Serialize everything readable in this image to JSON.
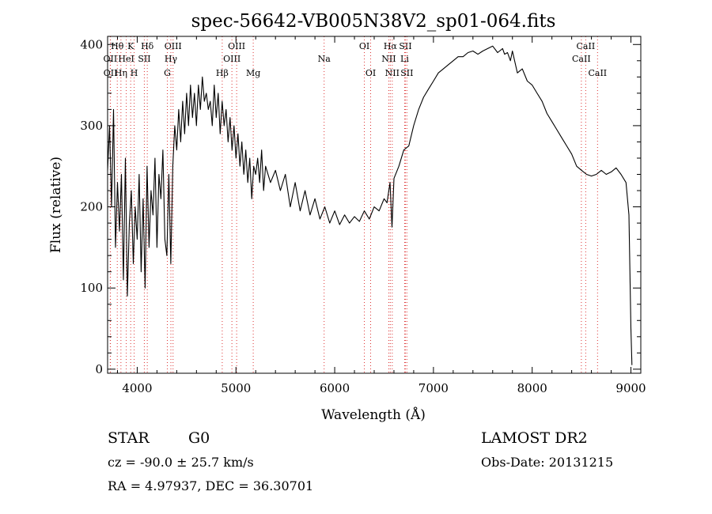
{
  "chart_data": {
    "type": "line",
    "title": "spec-56642-VB005N38V2_sp01-064.fits",
    "xlabel": "Wavelength (Å)",
    "ylabel": "Flux (relative)",
    "xlim": [
      3700,
      9100
    ],
    "ylim": [
      -5,
      410
    ],
    "xticks": [
      4000,
      5000,
      6000,
      7000,
      8000,
      9000
    ],
    "yticks": [
      0,
      100,
      200,
      300,
      400
    ],
    "grid": false,
    "series": [
      {
        "color": "#000000",
        "x": [
          3700,
          3720,
          3740,
          3760,
          3780,
          3800,
          3820,
          3840,
          3860,
          3880,
          3900,
          3920,
          3940,
          3960,
          3980,
          4000,
          4020,
          4040,
          4060,
          4080,
          4100,
          4120,
          4140,
          4160,
          4180,
          4200,
          4220,
          4240,
          4260,
          4280,
          4300,
          4320,
          4340,
          4360,
          4380,
          4400,
          4420,
          4440,
          4460,
          4480,
          4500,
          4520,
          4540,
          4560,
          4580,
          4600,
          4620,
          4640,
          4660,
          4680,
          4700,
          4720,
          4740,
          4760,
          4780,
          4800,
          4820,
          4840,
          4860,
          4880,
          4900,
          4920,
          4940,
          4960,
          4980,
          5000,
          5020,
          5040,
          5060,
          5080,
          5100,
          5120,
          5140,
          5160,
          5180,
          5200,
          5220,
          5240,
          5260,
          5280,
          5300,
          5350,
          5400,
          5450,
          5500,
          5550,
          5600,
          5650,
          5700,
          5750,
          5800,
          5850,
          5900,
          5950,
          6000,
          6050,
          6100,
          6150,
          6200,
          6250,
          6300,
          6350,
          6400,
          6450,
          6500,
          6530,
          6560,
          6580,
          6600,
          6650,
          6700,
          6750,
          6800,
          6850,
          6900,
          6950,
          7000,
          7050,
          7100,
          7150,
          7200,
          7250,
          7300,
          7350,
          7400,
          7450,
          7500,
          7550,
          7600,
          7650,
          7700,
          7720,
          7750,
          7780,
          7800,
          7850,
          7900,
          7950,
          8000,
          8050,
          8100,
          8150,
          8200,
          8250,
          8300,
          8350,
          8400,
          8450,
          8500,
          8550,
          8600,
          8650,
          8700,
          8750,
          8800,
          8850,
          8900,
          8950,
          8980,
          9000,
          9010
        ],
        "y": [
          245,
          300,
          200,
          320,
          150,
          230,
          170,
          240,
          110,
          260,
          90,
          180,
          220,
          130,
          200,
          160,
          240,
          120,
          210,
          100,
          250,
          150,
          220,
          190,
          260,
          150,
          240,
          210,
          270,
          160,
          140,
          240,
          130,
          250,
          300,
          270,
          320,
          280,
          330,
          290,
          340,
          300,
          350,
          310,
          340,
          300,
          350,
          320,
          360,
          330,
          340,
          320,
          330,
          300,
          350,
          310,
          340,
          290,
          330,
          300,
          320,
          280,
          310,
          270,
          300,
          260,
          290,
          250,
          280,
          240,
          270,
          230,
          260,
          210,
          250,
          240,
          260,
          230,
          270,
          220,
          250,
          230,
          245,
          220,
          240,
          200,
          230,
          195,
          220,
          190,
          210,
          185,
          200,
          180,
          195,
          178,
          190,
          180,
          188,
          182,
          195,
          185,
          200,
          195,
          210,
          205,
          230,
          175,
          235,
          250,
          270,
          275,
          300,
          320,
          335,
          345,
          355,
          365,
          370,
          375,
          380,
          385,
          385,
          390,
          392,
          388,
          392,
          395,
          398,
          390,
          395,
          388,
          390,
          380,
          392,
          365,
          370,
          355,
          350,
          340,
          330,
          315,
          305,
          295,
          285,
          275,
          265,
          250,
          245,
          240,
          238,
          240,
          245,
          240,
          243,
          248,
          240,
          230,
          190,
          50,
          5
        ],
        "values": [
          245,
          300,
          200,
          320,
          150,
          230,
          170,
          240,
          110,
          260,
          90,
          180,
          220,
          130,
          200,
          160,
          240,
          120,
          210,
          100,
          250,
          150,
          220,
          190,
          260,
          150,
          240,
          210,
          270,
          160,
          140,
          240,
          130,
          250,
          300,
          270,
          320,
          280,
          330,
          290,
          340,
          300,
          350,
          310,
          340,
          300,
          350,
          320,
          360,
          330,
          340,
          320,
          330,
          300,
          350,
          310,
          340,
          290,
          330,
          300,
          320,
          280,
          310,
          270,
          300,
          260,
          290,
          250,
          280,
          240,
          270,
          230,
          260,
          210,
          250,
          240,
          260,
          230,
          270,
          220,
          250,
          230,
          245,
          220,
          240,
          200,
          230,
          195,
          220,
          190,
          210,
          185,
          200,
          180,
          195,
          178,
          190,
          180,
          188,
          182,
          195,
          185,
          200,
          195,
          210,
          205,
          230,
          175,
          235,
          250,
          270,
          275,
          300,
          320,
          335,
          345,
          355,
          365,
          370,
          375,
          380,
          385,
          385,
          390,
          392,
          388,
          392,
          395,
          398,
          390,
          395,
          388,
          390,
          380,
          392,
          365,
          370,
          355,
          350,
          340,
          330,
          315,
          305,
          295,
          285,
          275,
          265,
          250,
          245,
          240,
          238,
          240,
          245,
          240,
          243,
          248,
          240,
          230,
          190,
          50,
          5
        ]
      }
    ],
    "line_markers": [
      {
        "label": "Hθ",
        "x": 3798,
        "row": 1
      },
      {
        "label": "OII",
        "x": 3727,
        "row": 2
      },
      {
        "label": "OII",
        "x": 3729,
        "row": 3
      },
      {
        "label": "K",
        "x": 3934,
        "row": 1
      },
      {
        "label": "HeI",
        "x": 3889,
        "row": 2
      },
      {
        "label": "Hη",
        "x": 3835,
        "row": 3
      },
      {
        "label": "Hδ",
        "x": 4102,
        "row": 1
      },
      {
        "label": "SII",
        "x": 4072,
        "row": 2
      },
      {
        "label": "H",
        "x": 3969,
        "row": 3
      },
      {
        "label": "OIII",
        "x": 4363,
        "row": 1
      },
      {
        "label": "Hγ",
        "x": 4341,
        "row": 2
      },
      {
        "label": "G",
        "x": 4305,
        "row": 3
      },
      {
        "label": "OIII",
        "x": 5007,
        "row": 1
      },
      {
        "label": "OIII",
        "x": 4959,
        "row": 2
      },
      {
        "label": "Hβ",
        "x": 4861,
        "row": 3
      },
      {
        "label": "Mg",
        "x": 5175,
        "row": 3
      },
      {
        "label": "Na",
        "x": 5893,
        "row": 2
      },
      {
        "label": "OI",
        "x": 6300,
        "row": 1
      },
      {
        "label": "OI",
        "x": 6364,
        "row": 3
      },
      {
        "label": "Hα",
        "x": 6563,
        "row": 1
      },
      {
        "label": "SII",
        "x": 6716,
        "row": 1
      },
      {
        "label": "NII",
        "x": 6548,
        "row": 2
      },
      {
        "label": "Li",
        "x": 6708,
        "row": 2
      },
      {
        "label": "NII",
        "x": 6583,
        "row": 3
      },
      {
        "label": "SII",
        "x": 6731,
        "row": 3
      },
      {
        "label": "CaII",
        "x": 8542,
        "row": 1
      },
      {
        "label": "CaII",
        "x": 8498,
        "row": 2
      },
      {
        "label": "CaII",
        "x": 8662,
        "row": 3
      }
    ]
  },
  "info": {
    "class_label": "STAR",
    "subclass": "G0",
    "survey": "LAMOST DR2",
    "cz": "cz = -90.0 ± 25.7 km/s",
    "obs_date": "Obs-Date: 20131215",
    "radec": "RA =   4.97937, DEC =  36.30701"
  }
}
